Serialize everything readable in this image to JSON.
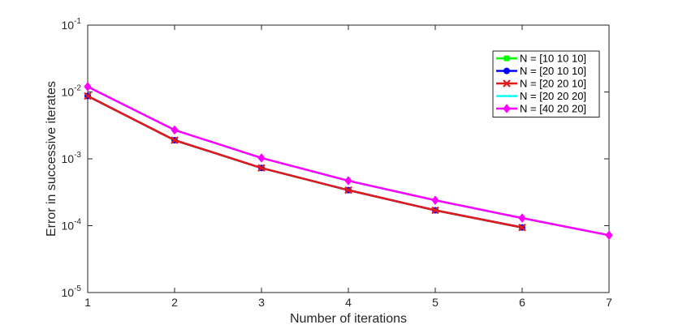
{
  "chart_data": {
    "type": "line",
    "title": "",
    "xlabel": "Number of iterations",
    "ylabel": "Error in successive iterates",
    "xlim": [
      1,
      7
    ],
    "ylim": [
      1e-05,
      0.1
    ],
    "yscale": "log",
    "grid": false,
    "legend_position": "top-right",
    "x_ticks": [
      "1",
      "2",
      "3",
      "4",
      "5",
      "6",
      "7"
    ],
    "y_ticks": [
      {
        "base": "10",
        "exp": "-1",
        "value": 0.1
      },
      {
        "base": "10",
        "exp": "-2",
        "value": 0.01
      },
      {
        "base": "10",
        "exp": "-3",
        "value": 0.001
      },
      {
        "base": "10",
        "exp": "-4",
        "value": 0.0001
      },
      {
        "base": "10",
        "exp": "-5",
        "value": 1e-05
      }
    ],
    "series": [
      {
        "name": "N = [10 10 10]",
        "color": "#00ff00",
        "marker": "square",
        "x": [
          1,
          2,
          3,
          4,
          5,
          6
        ],
        "y": [
          0.0087,
          0.0019,
          0.00073,
          0.00034,
          0.00017,
          9.4e-05
        ]
      },
      {
        "name": "N = [20 10 10]",
        "color": "#0000ff",
        "marker": "circle",
        "x": [
          1,
          2,
          3,
          4,
          5,
          6
        ],
        "y": [
          0.0087,
          0.0019,
          0.00073,
          0.00034,
          0.00017,
          9.4e-05
        ]
      },
      {
        "name": "N = [20 20 10]",
        "color": "#e31a1c",
        "marker": "x",
        "x": [
          1,
          2,
          3,
          4,
          5,
          6
        ],
        "y": [
          0.0087,
          0.0019,
          0.00073,
          0.00034,
          0.00017,
          9.4e-05
        ]
      },
      {
        "name": "N = [20 20 20]",
        "color": "#00ffff",
        "marker": "none",
        "x": [
          1,
          2,
          3,
          4,
          5,
          6,
          7
        ],
        "y": [
          0.012,
          0.0027,
          0.00103,
          0.00047,
          0.00024,
          0.00013,
          7.2e-05
        ]
      },
      {
        "name": "N = [40 20 20]",
        "color": "#ff00ff",
        "marker": "diamond",
        "x": [
          1,
          2,
          3,
          4,
          5,
          6,
          7
        ],
        "y": [
          0.012,
          0.0027,
          0.00103,
          0.00047,
          0.00024,
          0.00013,
          7.2e-05
        ]
      }
    ]
  }
}
